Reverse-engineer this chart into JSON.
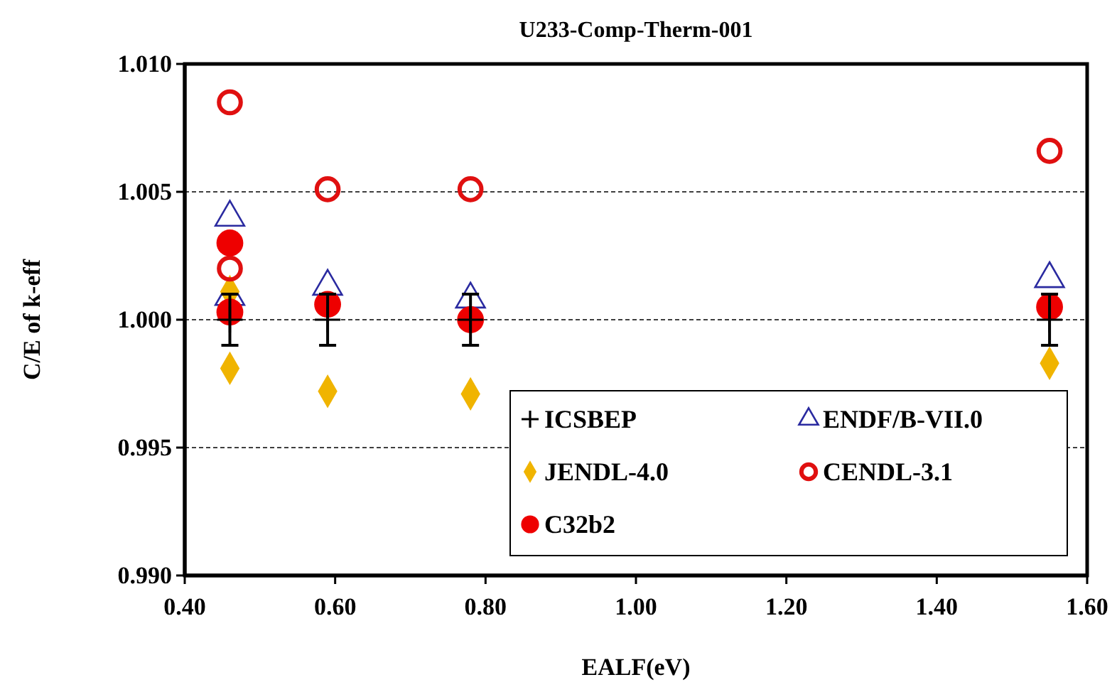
{
  "chart_data": {
    "type": "scatter",
    "title": "U233-Comp-Therm-001",
    "xlabel": "EALF(eV)",
    "ylabel": "C/E of k-eff",
    "xlim": [
      0.4,
      1.6
    ],
    "xticks": [
      {
        "value": 0.4,
        "label": "0.40"
      },
      {
        "value": 0.6,
        "label": "0.60"
      },
      {
        "value": 0.8,
        "label": "0.80"
      },
      {
        "value": 1.0,
        "label": "1.00"
      },
      {
        "value": 1.2,
        "label": "1.20"
      },
      {
        "value": 1.4,
        "label": "1.40"
      },
      {
        "value": 1.6,
        "label": "1.60"
      }
    ],
    "ylim": [
      0.99,
      1.01
    ],
    "yticks": [
      {
        "value": 0.99,
        "label": "0.990"
      },
      {
        "value": 0.995,
        "label": "0.995"
      },
      {
        "value": 1.0,
        "label": "1.000"
      },
      {
        "value": 1.005,
        "label": "1.005"
      },
      {
        "value": 1.01,
        "label": "1.010"
      }
    ],
    "grid": "y",
    "line_style": "dashed",
    "legend": "bottom right",
    "series": [
      {
        "name": "ICSBEP",
        "color": "#000000",
        "marker": "cross",
        "x": [
          0.46,
          0.59,
          0.78,
          1.55
        ],
        "values": [
          1.0,
          1.0,
          1.0,
          1.0
        ],
        "errors": [
          0.001,
          0.001,
          0.001,
          0.001
        ]
      },
      {
        "name": "ENDF/B-VII.0",
        "color": "#2a2aa0",
        "marker": "triangle",
        "x": [
          0.46,
          0.46,
          0.59,
          0.78,
          1.55
        ],
        "values": [
          1.004,
          1.0009,
          1.0013,
          1.0008,
          1.0016
        ]
      },
      {
        "name": "JENDL-4.0",
        "color": "#f0b400",
        "marker": "diamond",
        "x": [
          0.46,
          0.46,
          0.59,
          0.78,
          1.55
        ],
        "values": [
          1.0011,
          0.9981,
          0.9972,
          0.9971,
          0.9983
        ]
      },
      {
        "name": "CENDL-3.1",
        "color": "#e01010",
        "marker": "circle",
        "x": [
          0.46,
          0.46,
          0.59,
          0.78,
          1.55
        ],
        "values": [
          1.0085,
          1.002,
          1.0051,
          1.0051,
          1.0066
        ]
      },
      {
        "name": "C32b2",
        "color": "#ee0000",
        "marker": "circle-filled",
        "x": [
          0.46,
          0.46,
          0.59,
          0.78,
          1.55
        ],
        "values": [
          1.003,
          1.0003,
          1.0006,
          1.0,
          1.0005
        ]
      }
    ]
  }
}
